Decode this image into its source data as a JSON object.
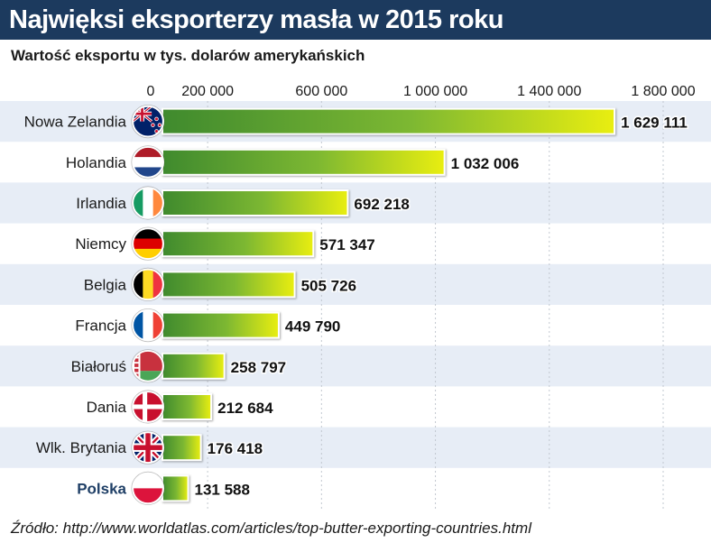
{
  "title": "Najwięksi eksporterzy masła w 2015 roku",
  "subtitle": "Wartość eksportu w tys. dolarów amerykańskich",
  "source": "Źródło: http://www.worldatlas.com/articles/top-butter-exporting-countries.html",
  "colors": {
    "header_bg": "#1c3a5e",
    "highlight_label": "#1f3f66",
    "bar_start": "#3f8a2e",
    "bar_mid": "#7db832",
    "bar_end": "#e9ee10",
    "row_band": "#e7edf6"
  },
  "chart_data": {
    "type": "bar",
    "orientation": "horizontal",
    "title": "Najwięksi eksporterzy masła w 2015 roku",
    "subtitle": "Wartość eksportu w tys. dolarów amerykańskich",
    "categories": [
      "Nowa Zelandia",
      "Holandia",
      "Irlandia",
      "Niemcy",
      "Belgia",
      "Francja",
      "Białoruś",
      "Dania",
      "Wlk. Brytania",
      "Polska"
    ],
    "values": [
      1629111,
      1032006,
      692218,
      571347,
      505726,
      449790,
      258797,
      212684,
      176418,
      131588
    ],
    "value_labels": [
      "1 629 111",
      "1 032 006",
      "692 218",
      "571 347",
      "505 726",
      "449 790",
      "258 797",
      "212 684",
      "176 418",
      "131 588"
    ],
    "flags": [
      "flag-new-zealand",
      "flag-netherlands",
      "flag-ireland",
      "flag-germany",
      "flag-belgium",
      "flag-france",
      "flag-belarus",
      "flag-denmark",
      "flag-united-kingdom",
      "flag-poland"
    ],
    "highlighted": "Polska",
    "xlim": [
      0,
      1800000
    ],
    "xticks": [
      0,
      200000,
      600000,
      1000000,
      1400000,
      1800000
    ],
    "xtick_labels": [
      "0",
      "200 000",
      "600 000",
      "1 000 000",
      "1 400 000",
      "1 800 000"
    ],
    "axis_position": "top",
    "grid": "vertical dashed",
    "legend": "none"
  }
}
